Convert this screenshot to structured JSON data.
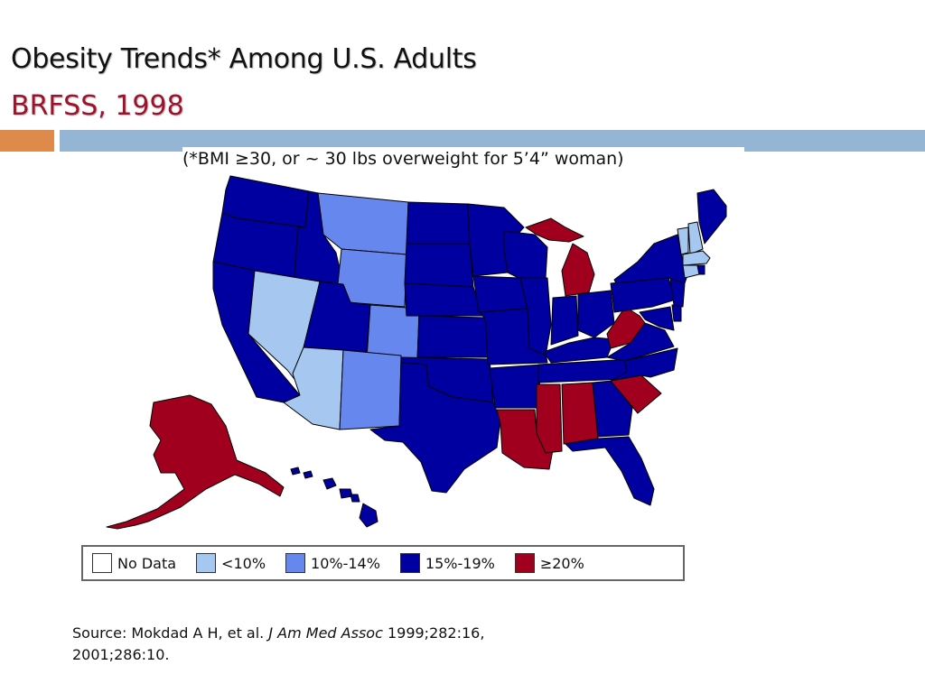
{
  "slide": {
    "title": "Obesity Trends* Among U.S. Adults",
    "subtitle_line": "BRFSS, 1998",
    "note": "(*BMI ≥30, or ~ 30 lbs overweight for 5’4” woman)"
  },
  "legend": [
    {
      "label": "No Data",
      "color": "#ffffff"
    },
    {
      "label": "<10%",
      "color": "#a6c8f0"
    },
    {
      "label": "10%-14%",
      "color": "#6688ee"
    },
    {
      "label": "15%-19%",
      "color": "#0000a0"
    },
    {
      "label": "≥20%",
      "color": "#a0001e"
    }
  ],
  "source": {
    "prefix": "Source: Mokdad A H, et al. ",
    "journal": "J Am Med Assoc",
    "suffix": " 1999;282:16,",
    "line2": "2001;286:10."
  },
  "map_data": {
    "year": 1998,
    "categories": {
      "lt10": [
        "VT",
        "NH",
        "MA",
        "CT",
        "NV",
        "AZ"
      ],
      "10to14": [
        "MT",
        "WY",
        "CO",
        "NM"
      ],
      "15to19": [
        "WA",
        "OR",
        "ID",
        "CA",
        "UT",
        "ND",
        "SD",
        "NE",
        "KS",
        "OK",
        "TX",
        "MN",
        "IA",
        "MO",
        "AR",
        "WI",
        "IL",
        "IN",
        "OH",
        "KY",
        "TN",
        "PA",
        "NY",
        "ME",
        "VA",
        "NC",
        "GA",
        "FL",
        "NJ",
        "DE",
        "MD",
        "RI",
        "HI"
      ],
      "ge20": [
        "MI",
        "WV",
        "SC",
        "LA",
        "MS",
        "AL",
        "AK"
      ]
    }
  }
}
